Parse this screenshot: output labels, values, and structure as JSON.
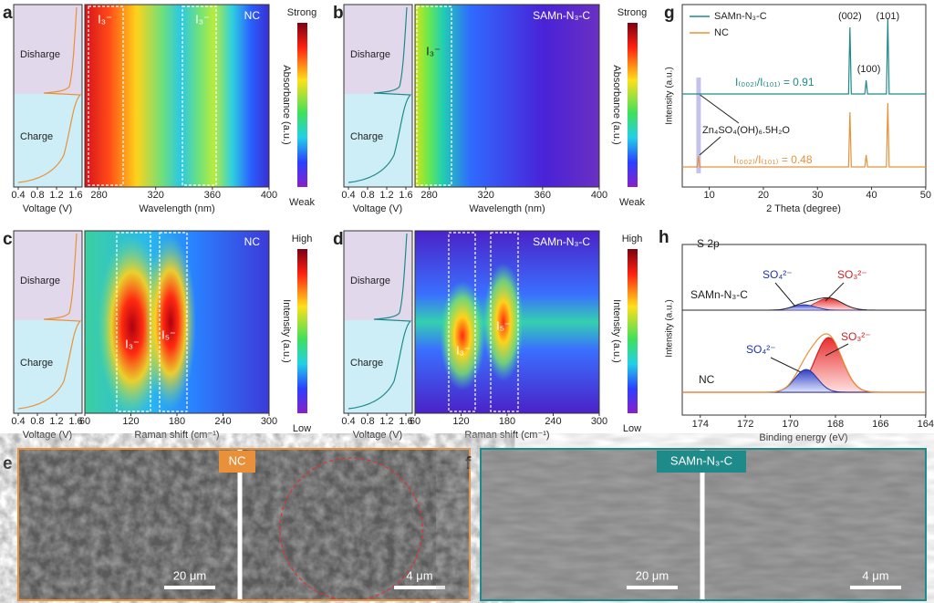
{
  "panels": [
    {
      "label": "a",
      "sample": "NC",
      "regions": [
        "Disharge",
        "Charge"
      ],
      "voltage_axis": {
        "title": "Voltage (V)",
        "ticks": [
          "0.4",
          "0.8",
          "1.2",
          "1.6"
        ]
      },
      "map_axis": {
        "title": "Wavelength (nm)",
        "ticks": [
          "280",
          "320",
          "360",
          "400"
        ]
      },
      "colorbar": {
        "title": "Absorbance (a.u.)",
        "high": "Strong",
        "low": "Weak"
      },
      "peaks": [
        "I₃⁻",
        "I₃⁻"
      ]
    },
    {
      "label": "b",
      "sample": "SAMn-N₃-C",
      "regions": [
        "Disharge",
        "Charge"
      ],
      "voltage_axis": {
        "title": "Voltage (V)",
        "ticks": [
          "0.4",
          "0.8",
          "1.2",
          "1.6"
        ]
      },
      "map_axis": {
        "title": "Wavelength (nm)",
        "ticks": [
          "280",
          "320",
          "360",
          "400"
        ]
      },
      "colorbar": {
        "title": "Absorbance (a.u.)",
        "high": "Strong",
        "low": "Weak"
      },
      "peaks": [
        "I₃⁻"
      ]
    },
    {
      "label": "c",
      "sample": "NC",
      "regions": [
        "Disharge",
        "Charge"
      ],
      "voltage_axis": {
        "title": "Voltage (V)",
        "ticks": [
          "0.4",
          "0.8",
          "1.2",
          "1.6"
        ]
      },
      "map_axis": {
        "title": "Raman shift (cm⁻¹)",
        "ticks": [
          "60",
          "120",
          "180",
          "240",
          "300"
        ]
      },
      "colorbar": {
        "title": "Intensity (a.u.)",
        "high": "High",
        "low": "Low"
      },
      "peaks": [
        "I₃⁻",
        "I₅⁻"
      ]
    },
    {
      "label": "d",
      "sample": "SAMn-N₃-C",
      "regions": [
        "Disharge",
        "Charge"
      ],
      "voltage_axis": {
        "title": "Voltage (V)",
        "ticks": [
          "0.4",
          "0.8",
          "1.2",
          "1.6"
        ]
      },
      "map_axis": {
        "title": "Raman shift (cm⁻¹)",
        "ticks": [
          "60",
          "120",
          "180",
          "240",
          "300"
        ]
      },
      "colorbar": {
        "title": "Intensity (a.u.)",
        "high": "High",
        "low": "Low"
      },
      "peaks": [
        "I₃⁻",
        "I₅⁻"
      ]
    }
  ],
  "xrd": {
    "label": "g",
    "legend": [
      "SAMn-N₃-C",
      "NC"
    ],
    "y_title": "Intensity (a.u.)",
    "x_title": "2 Theta (degree)",
    "x_ticks": [
      "10",
      "20",
      "30",
      "40",
      "50"
    ],
    "peaks": [
      "(002)",
      "(101)",
      "(100)"
    ],
    "ratios": [
      "I₍₀₀₂₎/I₍₁₀₁₎ = 0.91",
      "I₍₀₀₂₎/I₍₁₀₁₎ = 0.48"
    ],
    "phase": "Zn₄SO₄(OH)₆.5H₂O"
  },
  "xps": {
    "label": "h",
    "title": "S 2p",
    "samples": [
      "SAMn-N₃-C",
      "NC"
    ],
    "species": [
      "SO₄²⁻",
      "SO₃²⁻",
      "SO₄²⁻",
      "SO₃²⁻"
    ],
    "x_title": "Binding energy (eV)",
    "y_title": "Intensity (a.u.)",
    "x_ticks": [
      "174",
      "172",
      "170",
      "168",
      "166",
      "164"
    ]
  },
  "sem": [
    {
      "label": "e",
      "sample": "NC",
      "scale_bars": [
        "20 μm",
        "4 μm"
      ]
    },
    {
      "label": "f",
      "sample": "SAMn-N₃-C",
      "scale_bars": [
        "20 μm",
        "4 μm"
      ]
    }
  ]
}
